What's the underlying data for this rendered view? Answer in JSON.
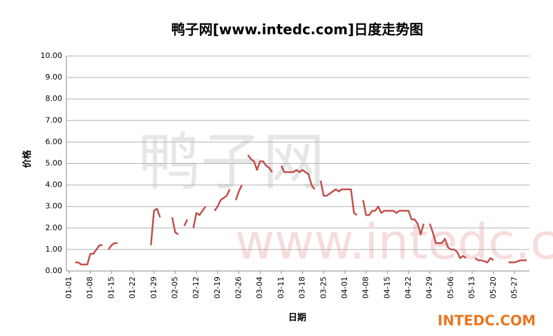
{
  "chart_data": {
    "type": "line",
    "title": "鸭子网[www.intedc.com]日度走势图",
    "y_label": "价格",
    "x_label": "日期",
    "watermark": "INTEDC.COM",
    "background_watermark": [
      "鸭子网",
      "www.intedc.com"
    ],
    "categories": [
      "01-01",
      null,
      null,
      null,
      null,
      null,
      null,
      "01-08",
      null,
      null,
      null,
      null,
      null,
      null,
      "01-15",
      null,
      null,
      null,
      null,
      null,
      null,
      "01-22",
      null,
      null,
      null,
      null,
      null,
      null,
      "01-29",
      null,
      null,
      null,
      null,
      null,
      null,
      "02-05",
      null,
      null,
      null,
      null,
      null,
      null,
      "02-12",
      null,
      null,
      null,
      null,
      null,
      null,
      "02-19",
      null,
      null,
      null,
      null,
      null,
      null,
      "02-26",
      null,
      null,
      null,
      null,
      null,
      null,
      "03-04",
      null,
      null,
      null,
      null,
      null,
      null,
      "03-11",
      null,
      null,
      null,
      null,
      null,
      null,
      "03-18",
      null,
      null,
      null,
      null,
      null,
      null,
      "03-25",
      null,
      null,
      null,
      null,
      null,
      null,
      "04-01",
      null,
      null,
      null,
      null,
      null,
      null,
      "04-08",
      null,
      null,
      null,
      null,
      null,
      null,
      "04-15",
      null,
      null,
      null,
      null,
      null,
      null,
      "04-22",
      null,
      null,
      null,
      null,
      null,
      null,
      "04-29",
      null,
      null,
      null,
      null,
      null,
      null,
      "05-06",
      null,
      null,
      null,
      null,
      null,
      null,
      "05-13",
      null,
      null,
      null,
      null,
      null,
      null,
      "05-20",
      null,
      null,
      null,
      null,
      null,
      null,
      "05-27",
      null,
      null,
      null,
      null
    ],
    "series": [
      {
        "name": "价格",
        "color": "#c0504d",
        "values": [
          null,
          null,
          0.4,
          0.4,
          0.3,
          0.3,
          0.3,
          0.8,
          0.8,
          1.0,
          1.2,
          1.2,
          null,
          1.0,
          1.2,
          1.3,
          1.3,
          null,
          null,
          null,
          null,
          null,
          null,
          null,
          null,
          null,
          null,
          1.2,
          2.8,
          2.9,
          2.5,
          null,
          null,
          null,
          2.5,
          1.8,
          1.7,
          null,
          2.1,
          2.4,
          null,
          2.0,
          2.7,
          2.6,
          2.8,
          3.0,
          null,
          null,
          2.8,
          3.0,
          3.3,
          3.4,
          3.5,
          3.8,
          null,
          3.3,
          3.7,
          4.0,
          null,
          5.4,
          5.2,
          5.1,
          4.7,
          5.1,
          5.1,
          4.9,
          4.8,
          4.6,
          null,
          null,
          4.9,
          4.6,
          4.6,
          4.6,
          4.6,
          4.7,
          4.6,
          4.7,
          4.6,
          4.5,
          4.0,
          3.8,
          null,
          4.2,
          3.5,
          3.5,
          3.6,
          3.7,
          3.8,
          3.7,
          3.8,
          3.8,
          3.8,
          3.8,
          2.7,
          2.6,
          null,
          3.3,
          2.6,
          2.6,
          2.8,
          2.8,
          3.0,
          2.7,
          2.8,
          2.8,
          2.8,
          2.8,
          2.7,
          2.8,
          2.8,
          2.8,
          2.8,
          2.4,
          2.4,
          2.2,
          1.7,
          2.2,
          null,
          2.2,
          1.8,
          1.3,
          1.3,
          1.3,
          1.5,
          1.1,
          1.0,
          1.0,
          0.9,
          0.6,
          0.7,
          0.6,
          null,
          null,
          0.6,
          0.5,
          0.5,
          0.45,
          0.4,
          0.6,
          0.5,
          null,
          null,
          null,
          null,
          0.4,
          0.4,
          0.4,
          0.45,
          0.5,
          0.5,
          0.5
        ]
      }
    ],
    "ylim": [
      0,
      10
    ],
    "yticks": [
      {
        "value": 0,
        "label": "0.00"
      },
      {
        "value": 1,
        "label": "1.00"
      },
      {
        "value": 2,
        "label": "2.00"
      },
      {
        "value": 3,
        "label": "3.00"
      },
      {
        "value": 4,
        "label": "4.00"
      },
      {
        "value": 5,
        "label": "5.00"
      },
      {
        "value": 6,
        "label": "6.00"
      },
      {
        "value": 7,
        "label": "7.00"
      },
      {
        "value": 8,
        "label": "8.00"
      },
      {
        "value": 9,
        "label": "9.00"
      },
      {
        "value": 10,
        "label": "10.00"
      }
    ],
    "grid": true
  }
}
